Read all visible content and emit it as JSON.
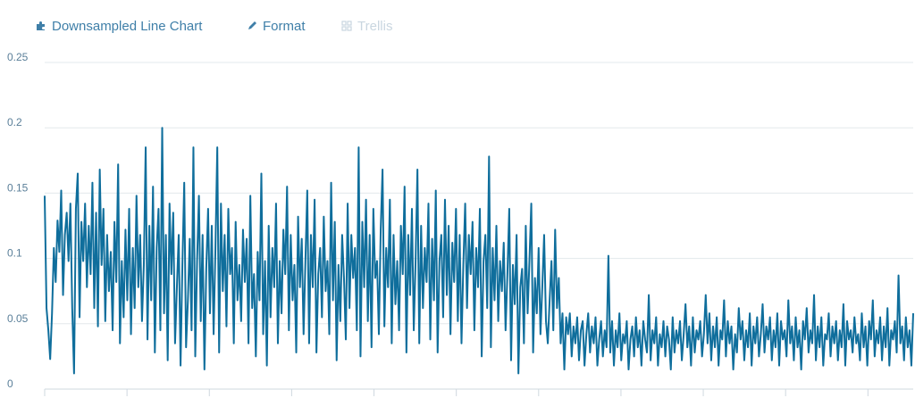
{
  "toolbar": {
    "items": [
      {
        "label": "Downsampled Line Chart",
        "icon": "puzzle-icon",
        "active": true
      },
      {
        "label": "Format",
        "icon": "pencil-icon",
        "active": true
      },
      {
        "label": "Trellis",
        "icon": "grid-icon",
        "active": false
      }
    ]
  },
  "colors": {
    "series": "#0f6e9c",
    "toolbar_text": "#3f7fa8",
    "toolbar_disabled": "#c9d6e0",
    "gridline": "#e3e8ec",
    "tick_label": "#5a7f99"
  },
  "chart_data": {
    "type": "line",
    "title": "",
    "xlabel": "",
    "ylabel": "",
    "ylim": [
      0,
      0.25
    ],
    "yticks": [
      0,
      0.05,
      0.1,
      0.15,
      0.2,
      0.25
    ],
    "ytick_labels": [
      "0",
      "0.05",
      "0.1",
      "0.15",
      "0.2",
      "0.25"
    ],
    "grid": true,
    "legend": "none",
    "series": [
      {
        "name": "",
        "values": [
          0.148,
          0.062,
          0.045,
          0.023,
          0.058,
          0.108,
          0.082,
          0.129,
          0.105,
          0.152,
          0.072,
          0.118,
          0.135,
          0.098,
          0.142,
          0.062,
          0.012,
          0.138,
          0.165,
          0.055,
          0.128,
          0.098,
          0.142,
          0.078,
          0.125,
          0.088,
          0.158,
          0.062,
          0.135,
          0.048,
          0.168,
          0.095,
          0.138,
          0.052,
          0.118,
          0.075,
          0.105,
          0.045,
          0.128,
          0.082,
          0.172,
          0.035,
          0.098,
          0.055,
          0.122,
          0.068,
          0.138,
          0.042,
          0.108,
          0.062,
          0.148,
          0.078,
          0.118,
          0.052,
          0.095,
          0.185,
          0.038,
          0.125,
          0.068,
          0.155,
          0.028,
          0.108,
          0.138,
          0.045,
          0.2,
          0.058,
          0.118,
          0.022,
          0.142,
          0.088,
          0.135,
          0.035,
          0.078,
          0.118,
          0.018,
          0.095,
          0.158,
          0.032,
          0.068,
          0.115,
          0.045,
          0.185,
          0.025,
          0.098,
          0.148,
          0.052,
          0.118,
          0.015,
          0.092,
          0.138,
          0.058,
          0.125,
          0.042,
          0.108,
          0.185,
          0.028,
          0.142,
          0.075,
          0.118,
          0.048,
          0.138,
          0.088,
          0.108,
          0.035,
          0.128,
          0.068,
          0.095,
          0.052,
          0.122,
          0.082,
          0.115,
          0.035,
          0.148,
          0.062,
          0.088,
          0.025,
          0.105,
          0.068,
          0.165,
          0.042,
          0.098,
          0.018,
          0.125,
          0.055,
          0.108,
          0.078,
          0.142,
          0.035,
          0.098,
          0.058,
          0.122,
          0.088,
          0.155,
          0.045,
          0.118,
          0.068,
          0.095,
          0.028,
          0.132,
          0.078,
          0.115,
          0.042,
          0.098,
          0.152,
          0.035,
          0.118,
          0.078,
          0.145,
          0.028,
          0.088,
          0.108,
          0.055,
          0.132,
          0.075,
          0.098,
          0.042,
          0.158,
          0.068,
          0.128,
          0.022,
          0.095,
          0.052,
          0.118,
          0.085,
          0.038,
          0.142,
          0.062,
          0.118,
          0.085,
          0.108,
          0.045,
          0.185,
          0.025,
          0.128,
          0.078,
          0.145,
          0.052,
          0.118,
          0.032,
          0.138,
          0.085,
          0.098,
          0.042,
          0.122,
          0.168,
          0.048,
          0.108,
          0.078,
          0.145,
          0.035,
          0.118,
          0.065,
          0.098,
          0.045,
          0.125,
          0.088,
          0.155,
          0.028,
          0.118,
          0.072,
          0.138,
          0.045,
          0.098,
          0.168,
          0.035,
          0.125,
          0.062,
          0.108,
          0.082,
          0.142,
          0.038,
          0.115,
          0.068,
          0.152,
          0.028,
          0.098,
          0.118,
          0.055,
          0.145,
          0.072,
          0.125,
          0.042,
          0.112,
          0.082,
          0.138,
          0.052,
          0.118,
          0.035,
          0.095,
          0.142,
          0.062,
          0.118,
          0.088,
          0.128,
          0.045,
          0.108,
          0.078,
          0.138,
          0.025,
          0.098,
          0.118,
          0.062,
          0.178,
          0.032,
          0.108,
          0.068,
          0.125,
          0.052,
          0.098,
          0.075,
          0.112,
          0.045,
          0.088,
          0.138,
          0.022,
          0.095,
          0.065,
          0.118,
          0.012,
          0.078,
          0.092,
          0.035,
          0.125,
          0.058,
          0.098,
          0.142,
          0.028,
          0.085,
          0.058,
          0.108,
          0.042,
          0.078,
          0.118,
          0.052,
          0.035,
          0.068,
          0.098,
          0.045,
          0.122,
          0.062,
          0.085,
          0.035,
          0.058,
          0.015,
          0.055,
          0.042,
          0.058,
          0.025,
          0.048,
          0.035,
          0.055,
          0.022,
          0.045,
          0.052,
          0.018,
          0.042,
          0.058,
          0.028,
          0.048,
          0.035,
          0.055,
          0.018,
          0.038,
          0.052,
          0.025,
          0.045,
          0.032,
          0.102,
          0.028,
          0.052,
          0.018,
          0.045,
          0.032,
          0.058,
          0.022,
          0.042,
          0.035,
          0.052,
          0.015,
          0.038,
          0.048,
          0.025,
          0.055,
          0.032,
          0.045,
          0.018,
          0.052,
          0.038,
          0.028,
          0.072,
          0.022,
          0.045,
          0.035,
          0.055,
          0.018,
          0.042,
          0.032,
          0.052,
          0.025,
          0.048,
          0.038,
          0.015,
          0.055,
          0.028,
          0.045,
          0.035,
          0.052,
          0.022,
          0.042,
          0.065,
          0.032,
          0.048,
          0.018,
          0.055,
          0.028,
          0.045,
          0.038,
          0.052,
          0.025,
          0.042,
          0.072,
          0.035,
          0.058,
          0.022,
          0.048,
          0.032,
          0.055,
          0.018,
          0.045,
          0.038,
          0.068,
          0.025,
          0.052,
          0.035,
          0.048,
          0.015,
          0.042,
          0.028,
          0.062,
          0.038,
          0.052,
          0.022,
          0.045,
          0.032,
          0.058,
          0.018,
          0.048,
          0.035,
          0.055,
          0.025,
          0.042,
          0.065,
          0.028,
          0.048,
          0.038,
          0.055,
          0.022,
          0.045,
          0.032,
          0.058,
          0.018,
          0.052,
          0.038,
          0.045,
          0.025,
          0.068,
          0.035,
          0.048,
          0.022,
          0.055,
          0.032,
          0.045,
          0.015,
          0.052,
          0.038,
          0.062,
          0.028,
          0.045,
          0.035,
          0.072,
          0.022,
          0.048,
          0.032,
          0.055,
          0.018,
          0.042,
          0.038,
          0.058,
          0.025,
          0.048,
          0.035,
          0.052,
          0.022,
          0.045,
          0.032,
          0.065,
          0.018,
          0.052,
          0.038,
          0.045,
          0.028,
          0.055,
          0.035,
          0.042,
          0.022,
          0.058,
          0.032,
          0.048,
          0.018,
          0.052,
          0.038,
          0.068,
          0.025,
          0.045,
          0.035,
          0.055,
          0.022,
          0.048,
          0.032,
          0.062,
          0.018,
          0.045,
          0.038,
          0.052,
          0.028,
          0.087,
          0.035,
          0.048,
          0.022,
          0.055,
          0.032,
          0.045,
          0.018,
          0.058
        ]
      }
    ]
  }
}
